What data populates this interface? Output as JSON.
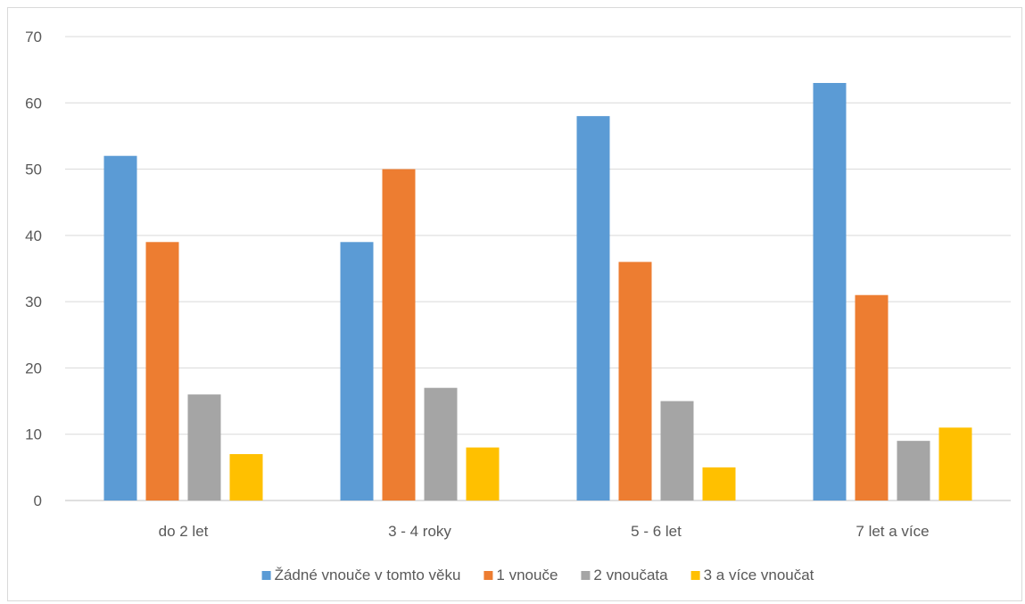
{
  "chart_data": {
    "type": "bar",
    "title": "",
    "xlabel": "",
    "ylabel": "",
    "ylim": [
      0,
      70
    ],
    "yticks": [
      0,
      10,
      20,
      30,
      40,
      50,
      60,
      70
    ],
    "grid": true,
    "legend_position": "bottom",
    "categories": [
      "do 2 let",
      "3 - 4 roky",
      "5 - 6 let",
      "7 let a více"
    ],
    "series": [
      {
        "name": "Žádné vnouče v tomto věku",
        "color": "#5b9bd5",
        "values": [
          52,
          39,
          58,
          63
        ]
      },
      {
        "name": "1 vnouče",
        "color": "#ed7d31",
        "values": [
          39,
          50,
          36,
          31
        ]
      },
      {
        "name": "2 vnoučata",
        "color": "#a5a5a5",
        "values": [
          16,
          17,
          15,
          9
        ]
      },
      {
        "name": "3 a více vnoučat",
        "color": "#ffc000",
        "values": [
          7,
          8,
          5,
          11
        ]
      }
    ]
  }
}
